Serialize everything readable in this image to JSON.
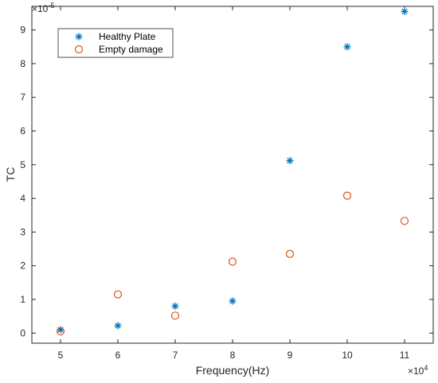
{
  "chart_data": {
    "type": "scatter",
    "title": "",
    "xlabel": "Frequency(Hz)",
    "ylabel": "TC",
    "x_multiplier_label": {
      "base": "×10",
      "exponent": "4"
    },
    "y_multiplier_label": {
      "base": "×10",
      "exponent": "-5"
    },
    "xlim": [
      4.5,
      11.5
    ],
    "ylim": [
      -0.3,
      9.7
    ],
    "xticks": [
      5,
      6,
      7,
      8,
      9,
      10,
      11
    ],
    "yticks": [
      0,
      1,
      2,
      3,
      4,
      5,
      6,
      7,
      8,
      9
    ],
    "grid": false,
    "legend_position": "top-left",
    "series": [
      {
        "name": "Healthy Plate",
        "marker": "asterisk",
        "color": "#0072BD",
        "x": [
          5,
          6,
          7,
          8,
          9,
          10,
          11
        ],
        "y": [
          0.1,
          0.22,
          0.8,
          0.95,
          5.12,
          8.5,
          9.55
        ]
      },
      {
        "name": "Empty damage",
        "marker": "circle",
        "color": "#D95319",
        "x": [
          5,
          6,
          7,
          8,
          9,
          10,
          11
        ],
        "y": [
          0.05,
          1.15,
          0.52,
          2.12,
          2.35,
          4.08,
          3.33
        ]
      }
    ]
  }
}
